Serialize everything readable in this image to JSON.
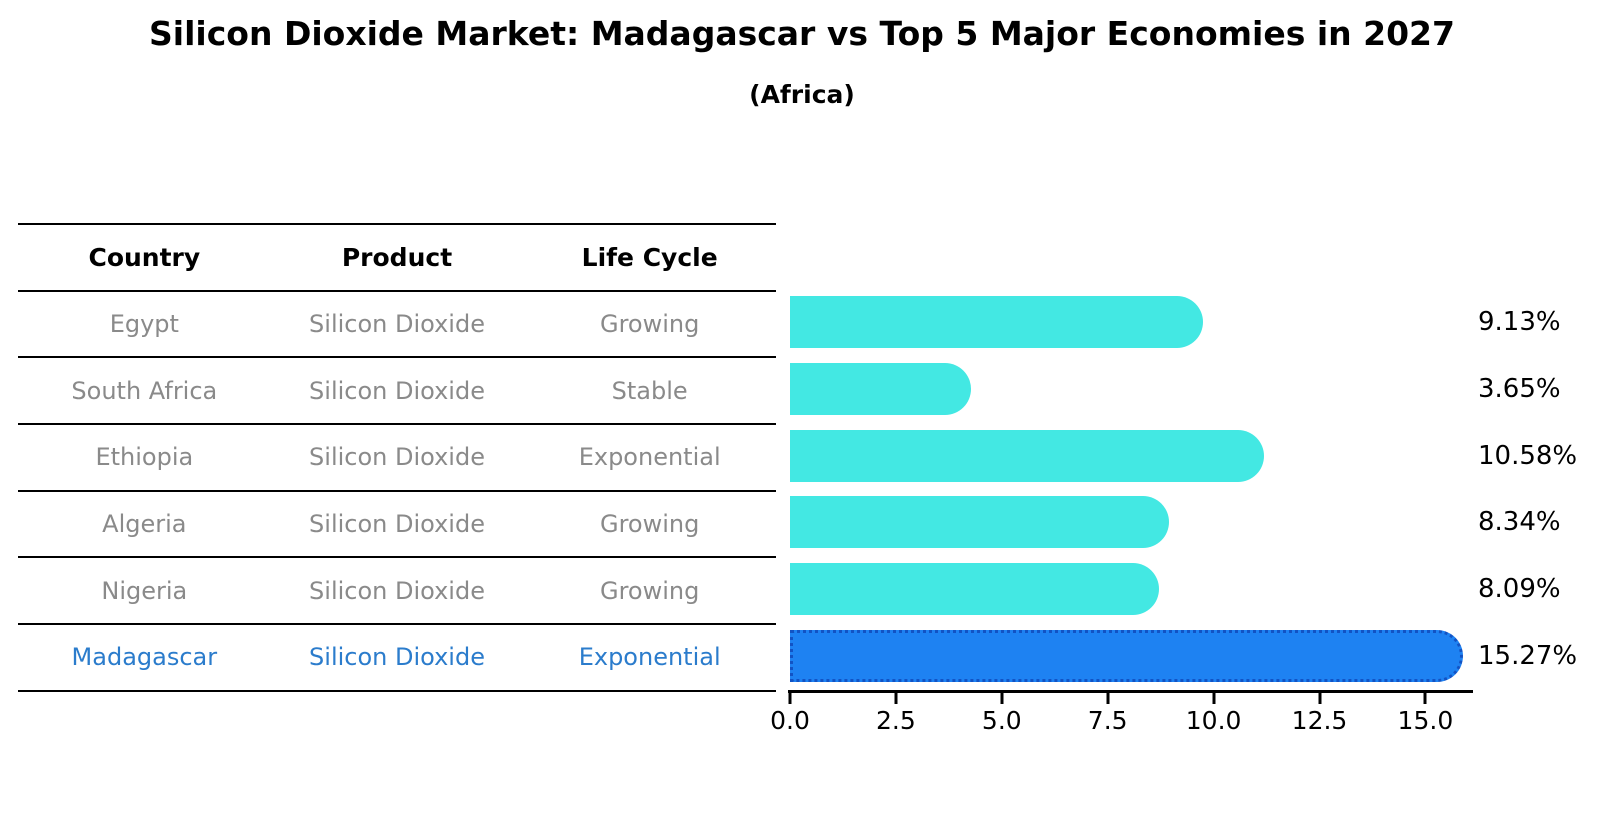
{
  "header": {
    "title": "Silicon Dioxide Market: Madagascar vs Top 5 Major Economies in 2027",
    "subtitle": "(Africa)"
  },
  "table": {
    "columns": [
      "Country",
      "Product",
      "Life Cycle"
    ],
    "rows": [
      {
        "country": "Egypt",
        "product": "Silicon Dioxide",
        "life_cycle": "Growing",
        "highlight": false
      },
      {
        "country": "South Africa",
        "product": "Silicon Dioxide",
        "life_cycle": "Stable",
        "highlight": false
      },
      {
        "country": "Ethiopia",
        "product": "Silicon Dioxide",
        "life_cycle": "Exponential",
        "highlight": false
      },
      {
        "country": "Algeria",
        "product": "Silicon Dioxide",
        "life_cycle": "Growing",
        "highlight": false
      },
      {
        "country": "Nigeria",
        "product": "Silicon Dioxide",
        "life_cycle": "Growing",
        "highlight": false
      },
      {
        "country": "Madagascar",
        "product": "Silicon Dioxide",
        "life_cycle": "Exponential",
        "highlight": true
      }
    ]
  },
  "chart_data": {
    "type": "bar",
    "orientation": "horizontal",
    "title": "Silicon Dioxide Market: Madagascar vs Top 5 Major Economies in 2027",
    "subtitle": "(Africa)",
    "categories": [
      "Egypt",
      "South Africa",
      "Ethiopia",
      "Algeria",
      "Nigeria",
      "Madagascar"
    ],
    "values": [
      9.13,
      3.65,
      10.58,
      8.34,
      8.09,
      15.27
    ],
    "value_labels": [
      "9.13%",
      "3.65%",
      "10.58%",
      "8.34%",
      "8.09%",
      "15.27%"
    ],
    "highlight_index": 5,
    "xlabel": "",
    "ylabel": "",
    "xlim": [
      0,
      16.1
    ],
    "x_ticks": [
      0.0,
      2.5,
      5.0,
      7.5,
      10.0,
      12.5,
      15.0
    ],
    "x_tick_labels": [
      "0.0",
      "2.5",
      "5.0",
      "7.5",
      "10.0",
      "12.5",
      "15.0"
    ],
    "grid": false,
    "legend": false,
    "colors": {
      "bar": "#43E8E3",
      "highlight_bar": "#1E82F2",
      "highlight_bar_border": "#1253C4",
      "table_text": "#8A8A8A",
      "highlight_text": "#2B7CCC",
      "value_label_text": "#000000"
    }
  }
}
